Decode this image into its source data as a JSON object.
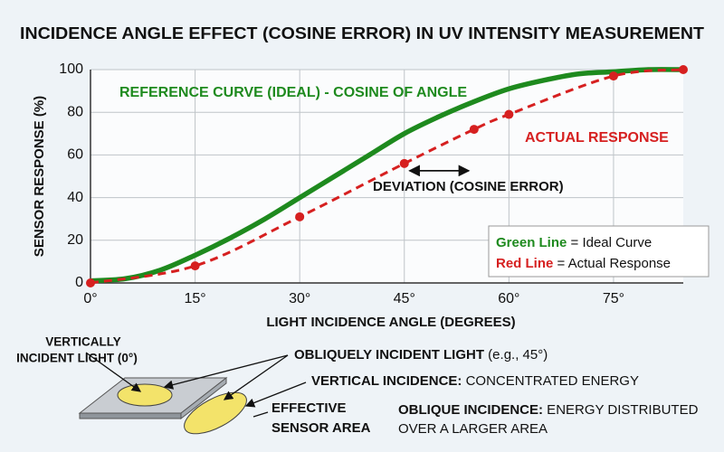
{
  "chart_data": {
    "type": "line",
    "title": "INCIDENCE ANGLE EFFECT (COSINE ERROR) IN UV INTENSITY MEASUREMENT",
    "x_label": "LIGHT INCIDENCE ANGLE (DEGREES)",
    "y_label": "SENSOR RESPONSE (%)",
    "xlim": [
      0,
      85
    ],
    "ylim": [
      0,
      100
    ],
    "xticks": [
      {
        "value": 0,
        "label": "0°"
      },
      {
        "value": 15,
        "label": "15°"
      },
      {
        "value": 30,
        "label": "30°"
      },
      {
        "value": 45,
        "label": "45°"
      },
      {
        "value": 60,
        "label": "60°"
      },
      {
        "value": 75,
        "label": "75°"
      }
    ],
    "yticks": [
      0,
      20,
      40,
      60,
      80,
      100
    ],
    "grid": true,
    "series": [
      {
        "name": "REFERENCE CURVE (IDEAL) - COSINE OF ANGLE",
        "color": "#1e8a1e",
        "dashed": false,
        "markers": false,
        "x": [
          0,
          5,
          10,
          15,
          20,
          25,
          30,
          35,
          40,
          45,
          50,
          55,
          60,
          65,
          70,
          75,
          80,
          85
        ],
        "values": [
          1,
          2,
          6,
          13,
          21,
          30,
          40,
          50,
          60,
          70,
          78,
          85,
          91,
          95,
          98,
          99,
          100,
          100
        ]
      },
      {
        "name": "ACTUAL RESPONSE",
        "color": "#d62020",
        "dashed": true,
        "markers": true,
        "x": [
          0,
          15,
          30,
          45,
          55,
          60,
          75,
          85
        ],
        "values": [
          0,
          8,
          31,
          56,
          72,
          79,
          97,
          100
        ]
      }
    ],
    "annotation": "DEVIATION (COSINE ERROR)",
    "legend": [
      {
        "key": "Green Line",
        "text": " = Ideal Curve",
        "color": "#1e8a1e"
      },
      {
        "key": "Red Line",
        "text": " = Actual Response",
        "color": "#d62020"
      }
    ]
  },
  "diagram": {
    "vertical_label": [
      "VERTICALLY",
      "INCIDENT LIGHT (0°)"
    ],
    "oblique_label": {
      "bold": "OBLIQUELY INCIDENT LIGHT",
      "rest": " (e.g., 45°)"
    },
    "vertical_note": {
      "bold": "VERTICAL INCIDENCE:",
      "rest": " CONCENTRATED ENERGY"
    },
    "sensor_label": [
      "EFFECTIVE",
      "SENSOR AREA"
    ],
    "oblique_note": {
      "bold": "OBLIQUE INCIDENCE:",
      "lines": [
        " ENERGY DISTRIBUTED",
        "OVER A LARGER AREA"
      ]
    }
  }
}
